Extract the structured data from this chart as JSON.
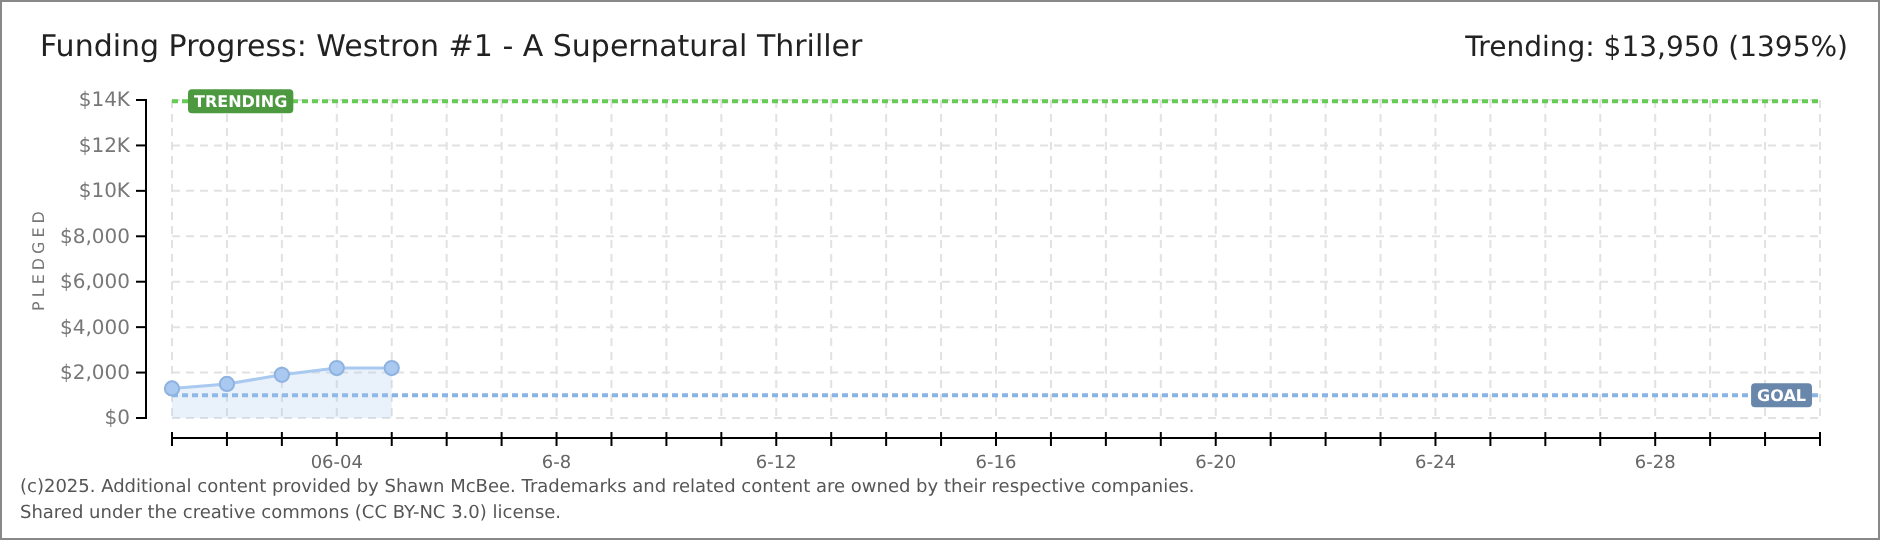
{
  "chart_data": {
    "type": "area",
    "title": "Funding Progress: Westron #1 - A Supernatural Thriller",
    "subtitle": "Trending: $13,950 (1395%)",
    "ylabel": "PLEDGED",
    "x": [
      "2025-06-01",
      "2025-06-02",
      "2025-06-03",
      "2025-06-04",
      "2025-06-05"
    ],
    "series": [
      {
        "color": "#a9c9f0",
        "values": [
          1300,
          1500,
          1900,
          2200,
          2200
        ]
      }
    ],
    "xlim": [
      "2025-06-01",
      "2025-07-01"
    ],
    "xticks": [
      {
        "value": "2025-06-01",
        "label": null
      },
      {
        "value": "2025-06-02",
        "label": null
      },
      {
        "value": "2025-06-03",
        "label": null
      },
      {
        "value": "2025-06-04",
        "label": "06-04"
      },
      {
        "value": "2025-06-05",
        "label": null
      },
      {
        "value": "2025-06-06",
        "label": null
      },
      {
        "value": "2025-06-07",
        "label": null
      },
      {
        "value": "2025-06-08",
        "label": "6-8"
      },
      {
        "value": "2025-06-09",
        "label": null
      },
      {
        "value": "2025-06-10",
        "label": null
      },
      {
        "value": "2025-06-11",
        "label": null
      },
      {
        "value": "2025-06-12",
        "label": "6-12"
      },
      {
        "value": "2025-06-13",
        "label": null
      },
      {
        "value": "2025-06-14",
        "label": null
      },
      {
        "value": "2025-06-15",
        "label": null
      },
      {
        "value": "2025-06-16",
        "label": "6-16"
      },
      {
        "value": "2025-06-17",
        "label": null
      },
      {
        "value": "2025-06-18",
        "label": null
      },
      {
        "value": "2025-06-19",
        "label": null
      },
      {
        "value": "2025-06-20",
        "label": "6-20"
      },
      {
        "value": "2025-06-21",
        "label": null
      },
      {
        "value": "2025-06-22",
        "label": null
      },
      {
        "value": "2025-06-23",
        "label": null
      },
      {
        "value": "2025-06-24",
        "label": "6-24"
      },
      {
        "value": "2025-06-25",
        "label": null
      },
      {
        "value": "2025-06-26",
        "label": null
      },
      {
        "value": "2025-06-27",
        "label": null
      },
      {
        "value": "2025-06-28",
        "label": "6-28"
      },
      {
        "value": "2025-06-29",
        "label": null
      },
      {
        "value": "2025-06-30",
        "label": null
      },
      {
        "value": "2025-07-01",
        "label": null
      }
    ],
    "ylim": [
      0,
      14000
    ],
    "yticks": [
      {
        "value": 0,
        "label": "$0"
      },
      {
        "value": 2000,
        "label": "$2,000"
      },
      {
        "value": 4000,
        "label": "$4,000"
      },
      {
        "value": 6000,
        "label": "$6,000"
      },
      {
        "value": 8000,
        "label": "$8,000"
      },
      {
        "value": 10000,
        "label": "$10K"
      },
      {
        "value": 12000,
        "label": "$12K"
      },
      {
        "value": 14000,
        "label": "$14K"
      }
    ],
    "ref_lines": [
      {
        "axis": "y",
        "value": 13950,
        "label": "TRENDING",
        "color": "#66cc55",
        "line_style": "dotted"
      },
      {
        "axis": "y",
        "value": 1000,
        "label": "GOAL",
        "color": "#8ab4e4",
        "line_style": "dotted"
      }
    ],
    "grid": true,
    "marker": "circle",
    "line_style": "solid",
    "annotations": [
      "(c)2025. Additional content provided by Shawn McBee. Trademarks and related content are owned by their respective companies.",
      "Shared under the creative commons (CC BY-NC 3.0) license."
    ]
  }
}
